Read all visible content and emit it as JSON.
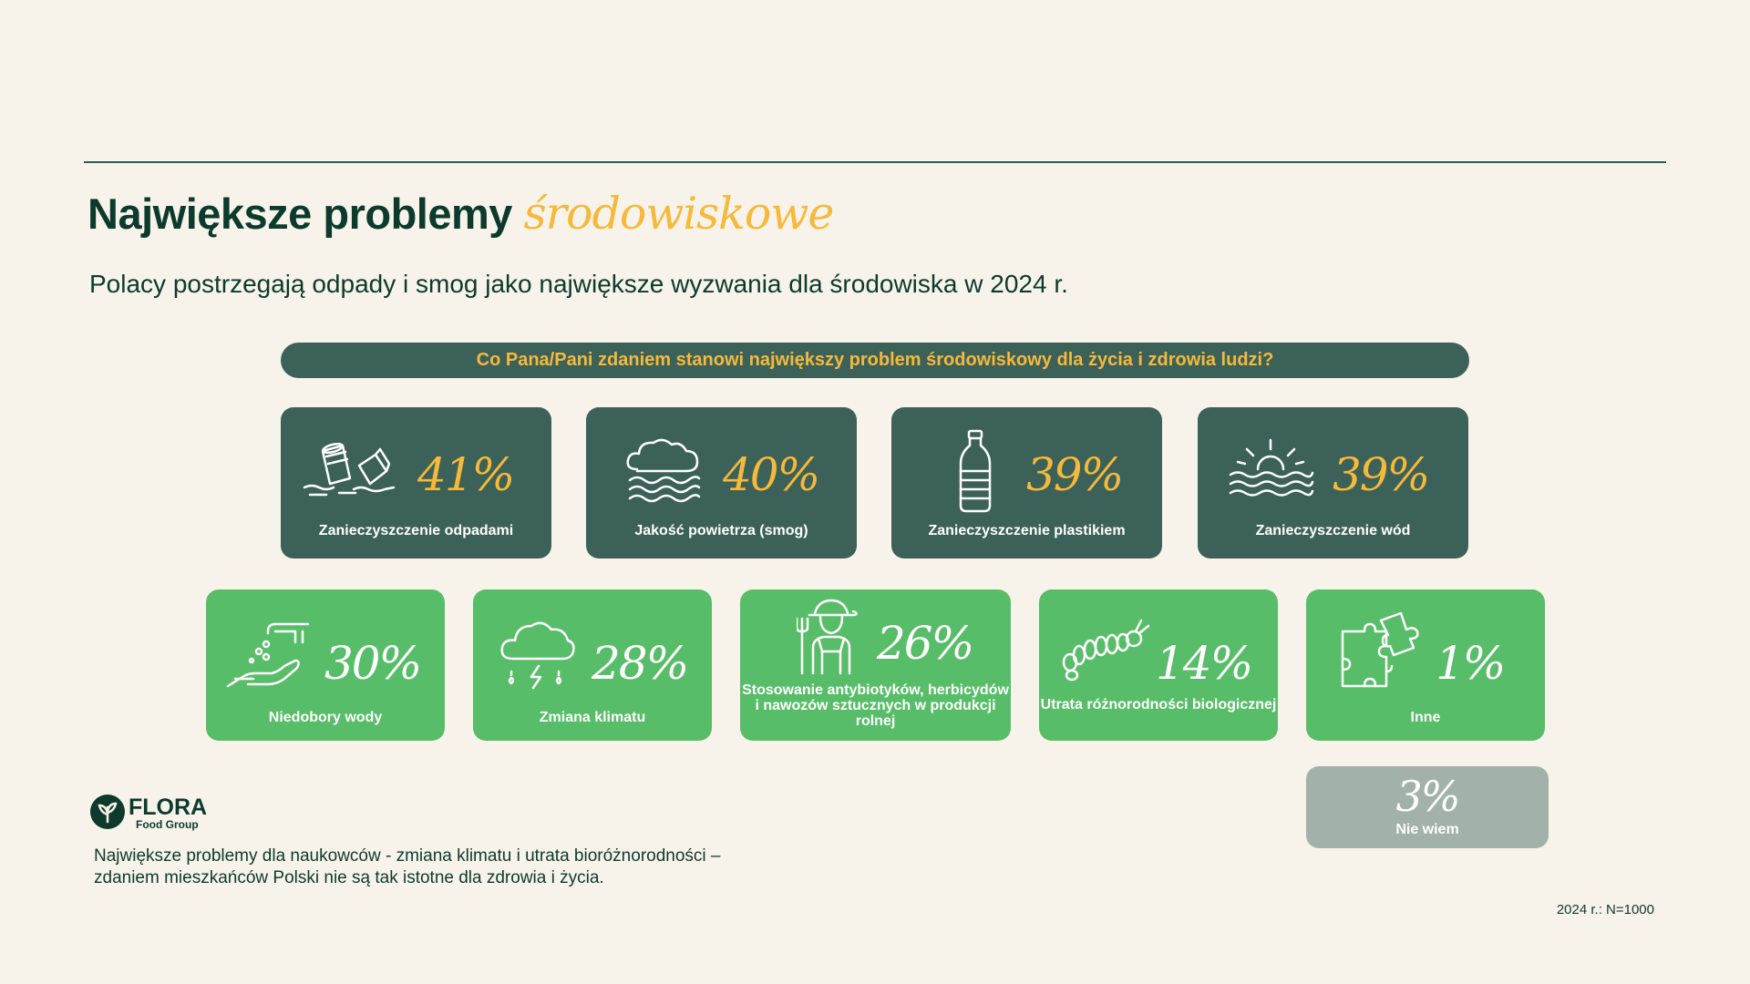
{
  "header": {
    "title_main": "Największe problemy",
    "title_accent": "środowiskowe",
    "subtitle": "Polacy postrzegają odpady i smog jako największe wyzwania dla środowiska w 2024 r.",
    "question": "Co Pana/Pani zdaniem stanowi największy problem środowiskowy dla życia i zdrowia ludzi?"
  },
  "row1": [
    {
      "value": "41%",
      "label": "Zanieczyszczenie odpadami",
      "icon": "trash-cans-icon"
    },
    {
      "value": "40%",
      "label": "Jakość powietrza (smog)",
      "icon": "cloud-smog-icon"
    },
    {
      "value": "39%",
      "label": "Zanieczyszczenie plastikiem",
      "icon": "plastic-bottle-icon"
    },
    {
      "value": "39%",
      "label": "Zanieczyszczenie wód",
      "icon": "sun-over-water-icon"
    }
  ],
  "row2": [
    {
      "value": "30%",
      "label": "Niedobory wody",
      "icon": "faucet-hand-icon"
    },
    {
      "value": "28%",
      "label": "Zmiana klimatu",
      "icon": "storm-cloud-icon"
    },
    {
      "value": "26%",
      "label": "Stosowanie antybiotyków, herbicydów i nawozów sztucznych w produkcji rolnej",
      "icon": "farmer-icon"
    },
    {
      "value": "14%",
      "label": "Utrata różnorodności biologicznej",
      "icon": "caterpillar-icon"
    },
    {
      "value": "1%",
      "label": "Inne",
      "icon": "puzzle-icon"
    }
  ],
  "unknown": {
    "value": "3%",
    "label": "Nie wiem"
  },
  "logo": {
    "name": "FLORA",
    "sub": "Food Group"
  },
  "footnote": "Największe problemy dla naukowców - zmiana klimatu i utrata bioróżnorodności – zdaniem mieszkańców Polski nie są tak istotne dla zdrowia i życia.",
  "sample": "2024 r.: N=1000",
  "colors": {
    "background": "#f8f3ea",
    "dark_card": "#3c6159",
    "green_card": "#58bd69",
    "accent": "#f5b93b",
    "grey_card": "#a3b1ab"
  }
}
